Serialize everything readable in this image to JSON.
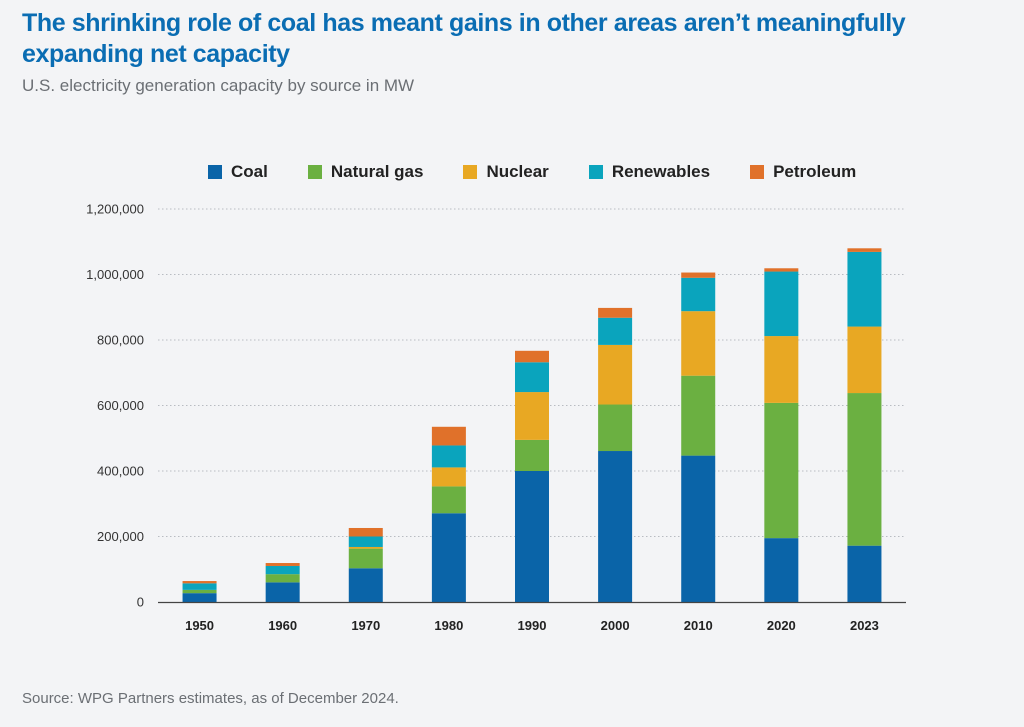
{
  "header": {
    "title": "The shrinking role of coal has meant gains in other areas aren’t meaningfully expanding net capacity",
    "subtitle": "U.S. electricity generation capacity by source in MW"
  },
  "footer": {
    "source": "Source: WPG Partners estimates, as of December 2024."
  },
  "colors": {
    "Coal": "#0a64a8",
    "Natural gas": "#6bb041",
    "Nuclear": "#e8a823",
    "Renewables": "#0aa4bd",
    "Petroleum": "#e0712a"
  },
  "chart_data": {
    "type": "bar",
    "stacked": true,
    "categories": [
      "1950",
      "1960",
      "1970",
      "1980",
      "1990",
      "2000",
      "2010",
      "2020",
      "2023"
    ],
    "series": [
      {
        "name": "Coal",
        "values": [
          27000,
          60000,
          103000,
          271000,
          400000,
          461000,
          447000,
          195000,
          172000
        ]
      },
      {
        "name": "Natural gas",
        "values": [
          10000,
          25000,
          60000,
          82000,
          95000,
          142000,
          244000,
          413000,
          466000
        ]
      },
      {
        "name": "Nuclear",
        "values": [
          0,
          0,
          5000,
          58000,
          146000,
          182000,
          197000,
          204000,
          203000
        ]
      },
      {
        "name": "Renewables",
        "values": [
          20000,
          25000,
          32000,
          67000,
          91000,
          83000,
          102000,
          197000,
          228000
        ]
      },
      {
        "name": "Petroleum",
        "values": [
          7000,
          9000,
          26000,
          57000,
          35000,
          30000,
          16000,
          10000,
          11000
        ]
      }
    ],
    "ylim": [
      0,
      1200000
    ],
    "y_ticks": [
      "0",
      "200,000",
      "400,000",
      "600,000",
      "800,000",
      "1,000,000",
      "1,200,000"
    ],
    "grid": true,
    "legend": "top"
  }
}
